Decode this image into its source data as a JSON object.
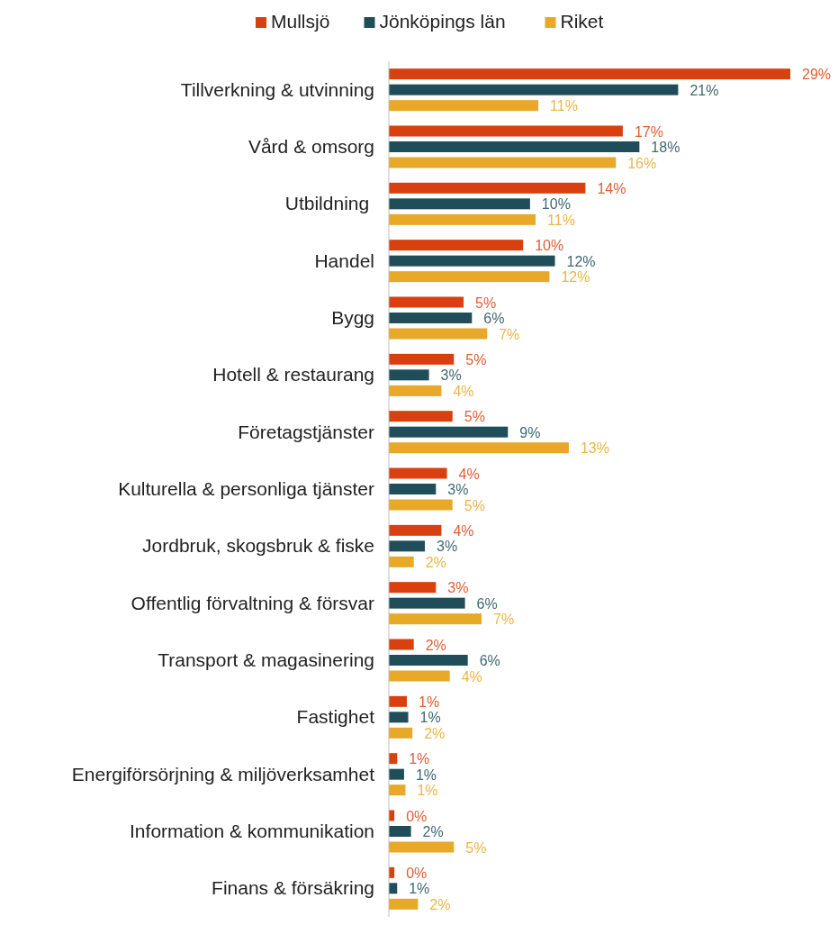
{
  "chart_data": {
    "type": "bar",
    "orientation": "horizontal",
    "legend": "top",
    "grid": false,
    "categories": [
      "Tillverkning & utvinning",
      "Vård & omsorg",
      "Utbildning ",
      "Handel",
      "Bygg",
      "Hotell & restaurang",
      "Företagstjänster",
      "Kulturella & personliga tjänster",
      "Jordbruk, skogsbruk & fiske",
      "Offentlig förvaltning & försvar",
      "Transport & magasinering",
      "Fastighet",
      "Energiförsörjning & miljöverksamhet",
      "Information & kommunikation",
      "Finans & försäkring"
    ],
    "series": [
      {
        "name": "Mullsjö",
        "color": "#d9400f",
        "values": [
          29.0,
          16.9,
          14.2,
          9.7,
          5.4,
          4.7,
          4.6,
          4.2,
          3.8,
          3.4,
          1.8,
          1.3,
          0.6,
          0.4,
          0.4
        ],
        "value_labels": [
          "29%",
          "17%",
          "14%",
          "10%",
          "5%",
          "5%",
          "5%",
          "4%",
          "4%",
          "3%",
          "2%",
          "1%",
          "1%",
          "0%",
          "0%"
        ]
      },
      {
        "name": "Jönköpings län",
        "color": "#1f4e5a",
        "values": [
          20.9,
          18.1,
          10.2,
          12.0,
          6.0,
          2.9,
          8.6,
          3.4,
          2.6,
          5.5,
          5.7,
          1.4,
          1.1,
          1.6,
          0.6
        ],
        "value_labels": [
          "21%",
          "18%",
          "10%",
          "12%",
          "6%",
          "3%",
          "9%",
          "3%",
          "3%",
          "6%",
          "6%",
          "1%",
          "1%",
          "2%",
          "1%"
        ]
      },
      {
        "name": "Riket",
        "color": "#e8a828",
        "values": [
          10.8,
          16.4,
          10.6,
          11.6,
          7.1,
          3.8,
          13.0,
          4.6,
          1.8,
          6.7,
          4.4,
          1.7,
          1.2,
          4.7,
          2.1
        ],
        "value_labels": [
          "11%",
          "16%",
          "11%",
          "12%",
          "7%",
          "4%",
          "13%",
          "5%",
          "2%",
          "7%",
          "4%",
          "2%",
          "1%",
          "5%",
          "2%"
        ]
      }
    ]
  }
}
